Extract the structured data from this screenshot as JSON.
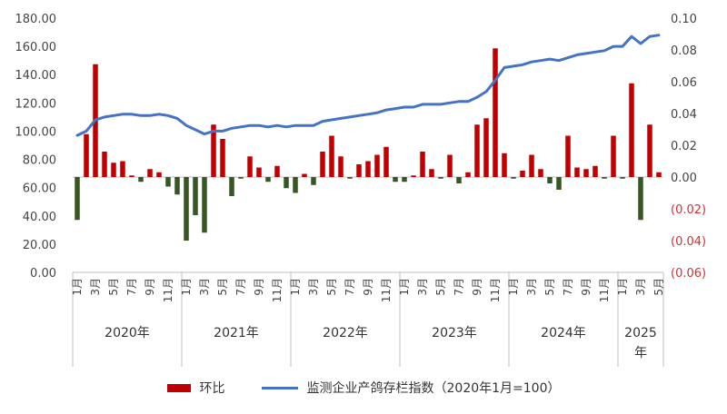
{
  "chart_data": {
    "type": "bar+line",
    "title": "",
    "months": [
      "1月",
      "2月",
      "3月",
      "4月",
      "5月",
      "6月",
      "7月",
      "8月",
      "9月",
      "10月",
      "11月",
      "12月"
    ],
    "years": [
      "2020年",
      "2021年",
      "2022年",
      "2023年",
      "2024年",
      "2025年"
    ],
    "left_axis": {
      "ticks": [
        "0.00",
        "20.00",
        "40.00",
        "60.00",
        "80.00",
        "100.00",
        "120.00",
        "140.00",
        "160.00",
        "180.00"
      ],
      "min": 0,
      "max": 180
    },
    "right_axis": {
      "ticks": [
        "(0.06)",
        "(0.04)",
        "(0.02)",
        "0.00",
        "0.02",
        "0.04",
        "0.06",
        "0.08",
        "0.10"
      ],
      "min": -0.06,
      "max": 0.1,
      "negative_color": "#cc3333"
    },
    "series": [
      {
        "name": "环比",
        "type": "bar",
        "axis": "right",
        "positive_color": "#c00000",
        "negative_color": "#375623",
        "values": [
          -0.027,
          0.027,
          0.071,
          0.016,
          0.009,
          0.01,
          0.001,
          -0.003,
          0.005,
          0.003,
          -0.006,
          -0.011,
          -0.04,
          -0.024,
          -0.035,
          0.033,
          0.024,
          -0.012,
          -0.001,
          0.013,
          0.006,
          -0.003,
          0.007,
          -0.007,
          -0.01,
          0.002,
          -0.005,
          0.016,
          0.026,
          0.013,
          -0.001,
          0.008,
          0.01,
          0.014,
          0.019,
          -0.003,
          -0.003,
          0.001,
          0.016,
          0.005,
          -0.001,
          0.014,
          -0.004,
          0.003,
          0.033,
          0.037,
          0.081,
          0.015,
          -0.001,
          0.004,
          0.014,
          0.005,
          -0.004,
          -0.008,
          0.026,
          0.006,
          0.005,
          0.007,
          -0.001,
          0.026,
          -0.001,
          0.059,
          -0.027,
          0.033,
          0.003
        ]
      },
      {
        "name": "监测企业产鸽存栏指数（2020年1月=100）",
        "type": "line",
        "axis": "left",
        "color": "#4472c4",
        "values": [
          97,
          100,
          108,
          110,
          111,
          112,
          112,
          111,
          111,
          112,
          111,
          109,
          104,
          101,
          98,
          100,
          100,
          102,
          103,
          104,
          104,
          103,
          104,
          103,
          104,
          104,
          104,
          107,
          108,
          109,
          110,
          111,
          112,
          113,
          115,
          116,
          117,
          117,
          119,
          119,
          119,
          120,
          121,
          121,
          124,
          128,
          136,
          145,
          146,
          147,
          149,
          150,
          151,
          150,
          152,
          154,
          155,
          156,
          157,
          160,
          160,
          167,
          162,
          167,
          168
        ]
      }
    ],
    "grid": false,
    "legend_position": "bottom"
  },
  "legend": {
    "bar_label": "环比",
    "line_label": "监测企业产鸽存栏指数（2020年1月=100）"
  }
}
